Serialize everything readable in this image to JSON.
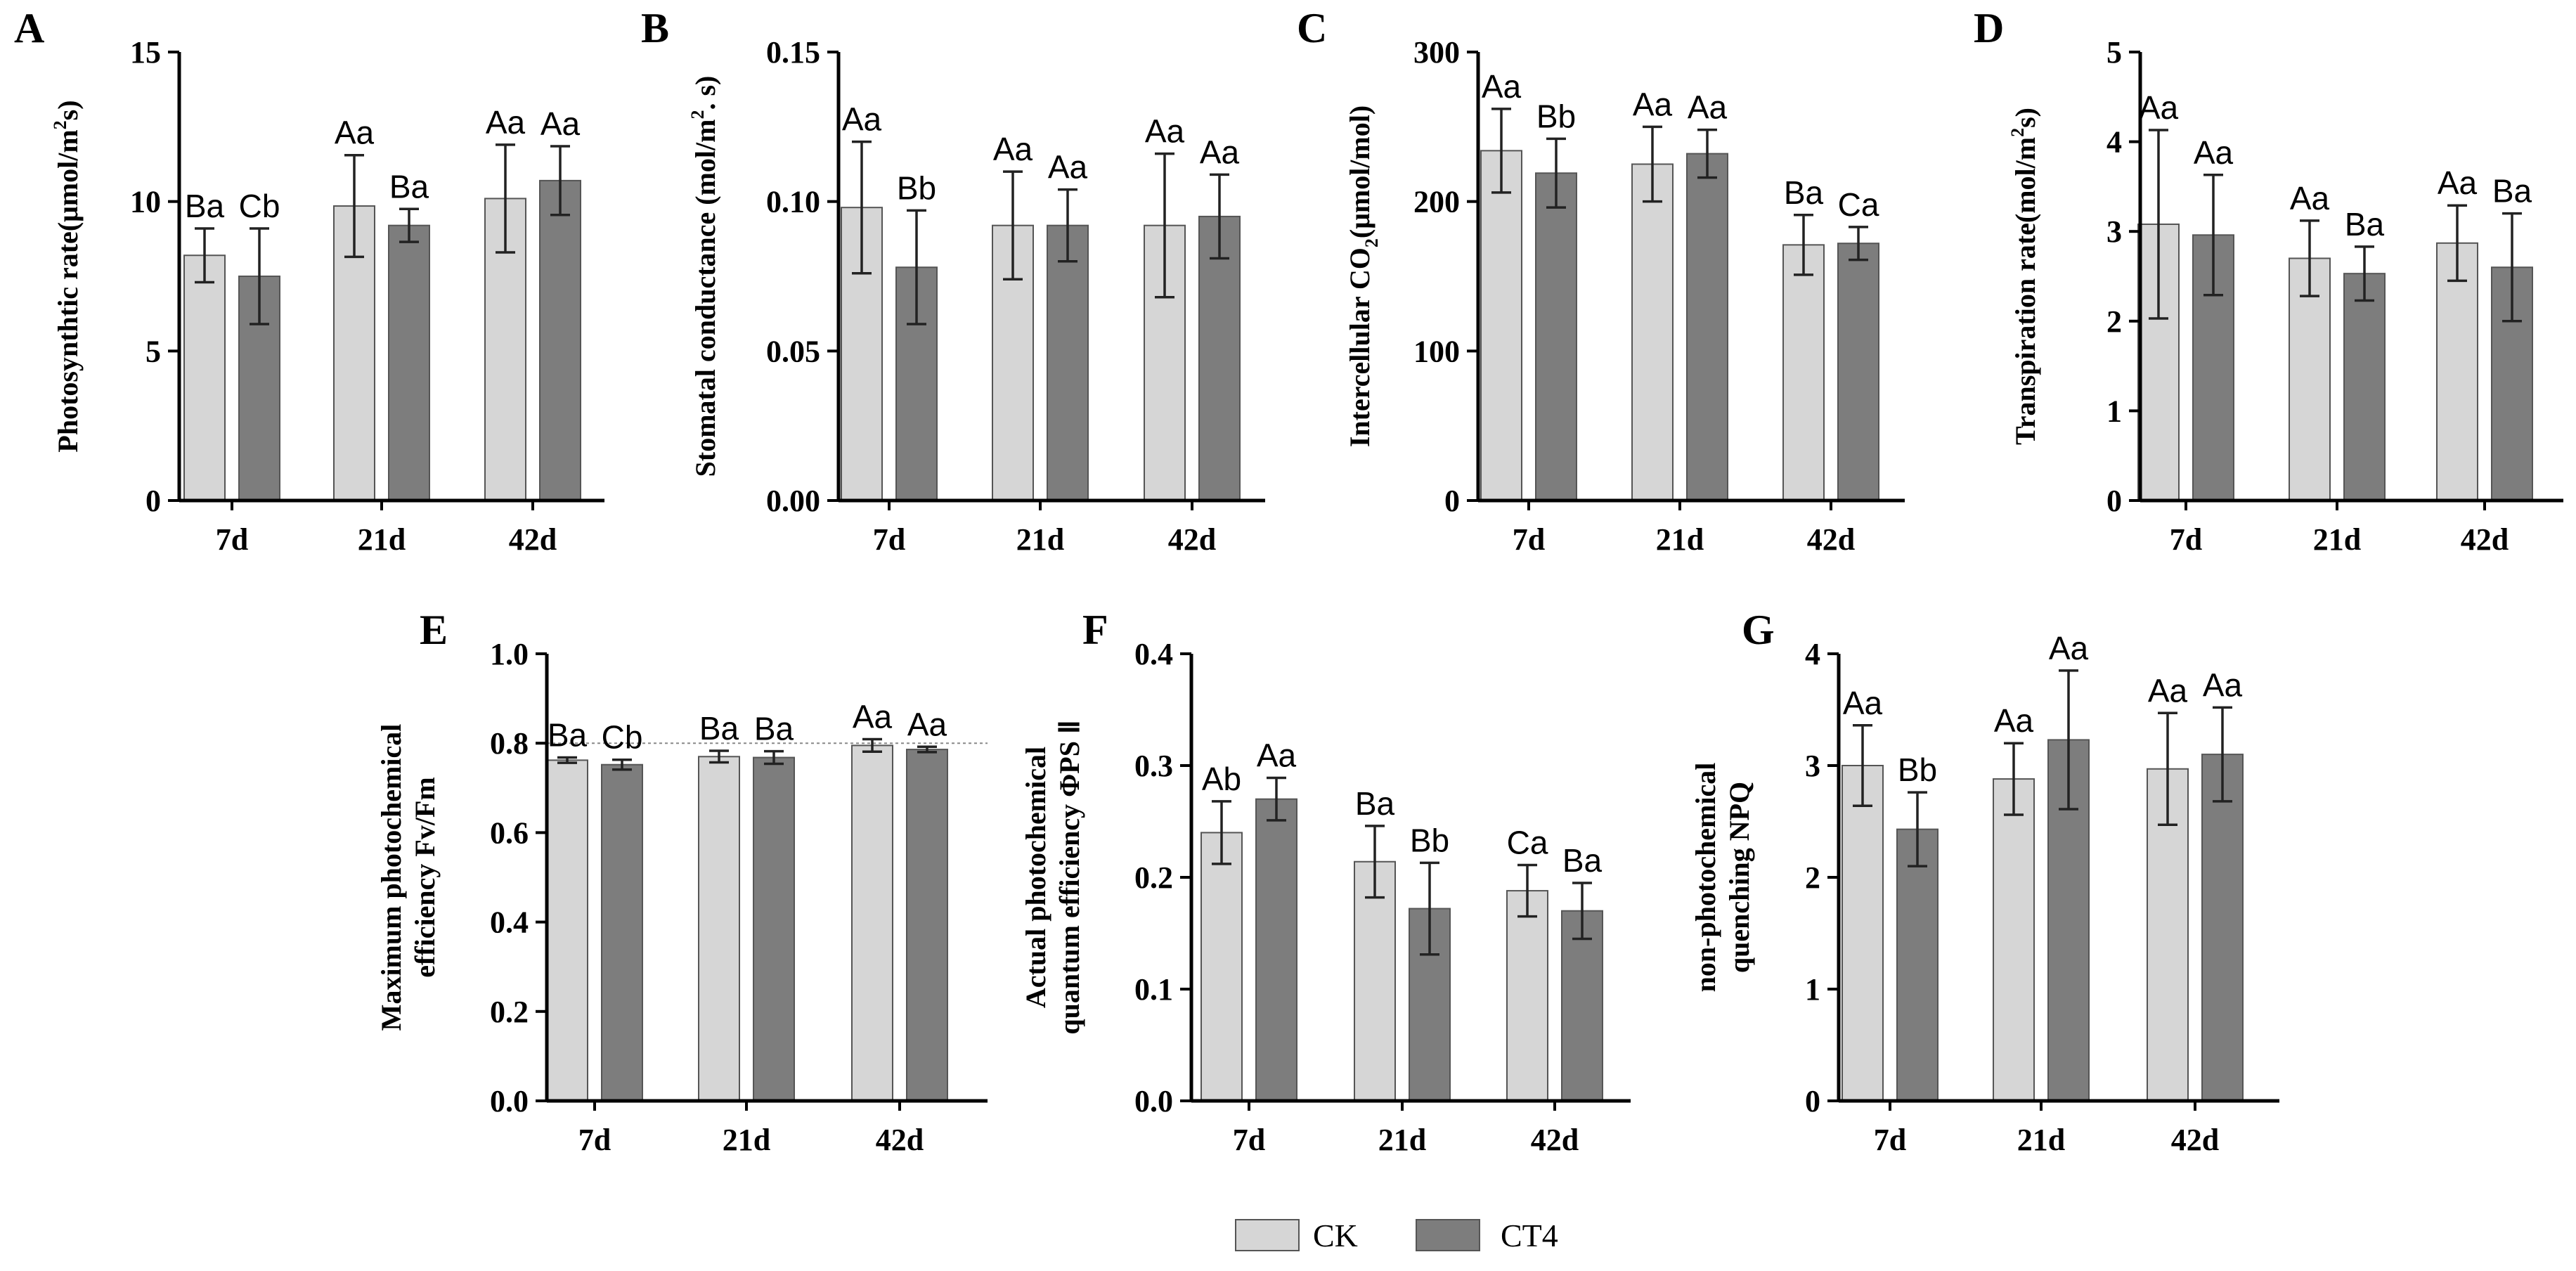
{
  "legend": {
    "items": [
      {
        "name": "CK",
        "color": "#d6d6d6"
      },
      {
        "name": "CT4",
        "color": "#7d7d7d"
      }
    ]
  },
  "chart_data": [
    {
      "panel": "A",
      "type": "bar",
      "categories": [
        "7d",
        "21d",
        "42d"
      ],
      "ylabel_main": "Photosynthtic rate(μmol/m",
      "ylabel_sup": "2",
      "ylabel_post": "s)",
      "ylim": [
        0,
        15
      ],
      "yticks": [
        0,
        5,
        10,
        15
      ],
      "tick_decimals": 0,
      "series": [
        {
          "name": "CK",
          "values": [
            8.2,
            9.85,
            10.1
          ],
          "errors": [
            0.9,
            1.7,
            1.8
          ],
          "labels": [
            "Ba",
            "Aa",
            "Aa"
          ]
        },
        {
          "name": "CT4",
          "values": [
            7.5,
            9.2,
            10.7
          ],
          "errors": [
            1.6,
            0.55,
            1.15
          ],
          "labels": [
            "Cb",
            "Ba",
            "Aa"
          ]
        }
      ]
    },
    {
      "panel": "B",
      "type": "bar",
      "categories": [
        "7d",
        "21d",
        "42d"
      ],
      "ylabel_main": "Stomatal conductance (mol/m",
      "ylabel_sup": "2",
      "ylabel_post": ". s)",
      "ylim": [
        0,
        0.15
      ],
      "yticks": [
        0,
        0.05,
        0.1,
        0.15
      ],
      "tick_decimals": 2,
      "series": [
        {
          "name": "CK",
          "values": [
            0.098,
            0.092,
            0.092
          ],
          "errors": [
            0.022,
            0.018,
            0.024
          ],
          "labels": [
            "Aa",
            "Aa",
            "Aa"
          ]
        },
        {
          "name": "CT4",
          "values": [
            0.078,
            0.092,
            0.095
          ],
          "errors": [
            0.019,
            0.012,
            0.014
          ],
          "labels": [
            "Bb",
            "Aa",
            "Aa"
          ]
        }
      ]
    },
    {
      "panel": "C",
      "type": "bar",
      "categories": [
        "7d",
        "21d",
        "42d"
      ],
      "ylabel_main": "Intercellular CO",
      "ylabel_sub": "2",
      "ylabel_post": "(μmol/mol)",
      "ylim": [
        0,
        300
      ],
      "yticks": [
        0,
        100,
        200,
        300
      ],
      "tick_decimals": 0,
      "series": [
        {
          "name": "CK",
          "values": [
            234,
            225,
            171
          ],
          "errors": [
            28,
            25,
            20
          ],
          "labels": [
            "Aa",
            "Aa",
            "Ba"
          ]
        },
        {
          "name": "CT4",
          "values": [
            219,
            232,
            172
          ],
          "errors": [
            23,
            16,
            11
          ],
          "labels": [
            "Bb",
            "Aa",
            "Ca"
          ]
        }
      ]
    },
    {
      "panel": "D",
      "type": "bar",
      "categories": [
        "7d",
        "21d",
        "42d"
      ],
      "ylabel_main": "Transpiration rate(mol/m",
      "ylabel_sup": "2",
      "ylabel_post": "s)",
      "ylim": [
        0,
        5
      ],
      "yticks": [
        0,
        1,
        2,
        3,
        4,
        5
      ],
      "tick_decimals": 0,
      "series": [
        {
          "name": "CK",
          "values": [
            3.08,
            2.7,
            2.87
          ],
          "errors": [
            1.05,
            0.42,
            0.42
          ],
          "labels": [
            "Aa",
            "Aa",
            "Aa"
          ]
        },
        {
          "name": "CT4",
          "values": [
            2.96,
            2.53,
            2.6
          ],
          "errors": [
            0.67,
            0.3,
            0.6
          ],
          "labels": [
            "Aa",
            "Ba",
            "Ba"
          ]
        }
      ]
    },
    {
      "panel": "E",
      "type": "bar",
      "categories": [
        "7d",
        "21d",
        "42d"
      ],
      "ylabel_lines": [
        "Maximum photochemical",
        "efficiency Fv/Fm"
      ],
      "ylim": [
        0,
        1
      ],
      "yticks": [
        0,
        0.2,
        0.4,
        0.6,
        0.8,
        1
      ],
      "tick_decimals": 1,
      "reference_line": 0.8,
      "series": [
        {
          "name": "CK",
          "values": [
            0.762,
            0.77,
            0.795
          ],
          "errors": [
            0.006,
            0.013,
            0.014
          ],
          "labels": [
            "Ba",
            "Ba",
            "Aa"
          ]
        },
        {
          "name": "CT4",
          "values": [
            0.752,
            0.768,
            0.786
          ],
          "errors": [
            0.011,
            0.014,
            0.006
          ],
          "labels": [
            "Cb",
            "Ba",
            "Aa"
          ]
        }
      ]
    },
    {
      "panel": "F",
      "type": "bar",
      "categories": [
        "7d",
        "21d",
        "42d"
      ],
      "ylabel_lines": [
        "Actual photochemical",
        "quantum efficiency ΦPS Ⅱ"
      ],
      "ylim": [
        0,
        0.4
      ],
      "yticks": [
        0,
        0.1,
        0.2,
        0.3,
        0.4
      ],
      "tick_decimals": 1,
      "series": [
        {
          "name": "CK",
          "values": [
            0.24,
            0.214,
            0.188
          ],
          "errors": [
            0.028,
            0.032,
            0.023
          ],
          "labels": [
            "Ab",
            "Ba",
            "Ca"
          ]
        },
        {
          "name": "CT4",
          "values": [
            0.27,
            0.172,
            0.17
          ],
          "errors": [
            0.019,
            0.041,
            0.025
          ],
          "labels": [
            "Aa",
            "Bb",
            "Ba"
          ]
        }
      ]
    },
    {
      "panel": "G",
      "type": "bar",
      "categories": [
        "7d",
        "21d",
        "42d"
      ],
      "ylabel_lines": [
        "non-photochemical",
        "quenching NPQ"
      ],
      "ylim": [
        0,
        4
      ],
      "yticks": [
        0,
        1,
        2,
        3,
        4
      ],
      "tick_decimals": 0,
      "series": [
        {
          "name": "CK",
          "values": [
            3.0,
            2.88,
            2.97
          ],
          "errors": [
            0.36,
            0.32,
            0.5
          ],
          "labels": [
            "Aa",
            "Aa",
            "Aa"
          ]
        },
        {
          "name": "CT4",
          "values": [
            2.43,
            3.23,
            3.1
          ],
          "errors": [
            0.33,
            0.62,
            0.42
          ],
          "labels": [
            "Bb",
            "Aa",
            "Aa"
          ]
        }
      ]
    }
  ]
}
